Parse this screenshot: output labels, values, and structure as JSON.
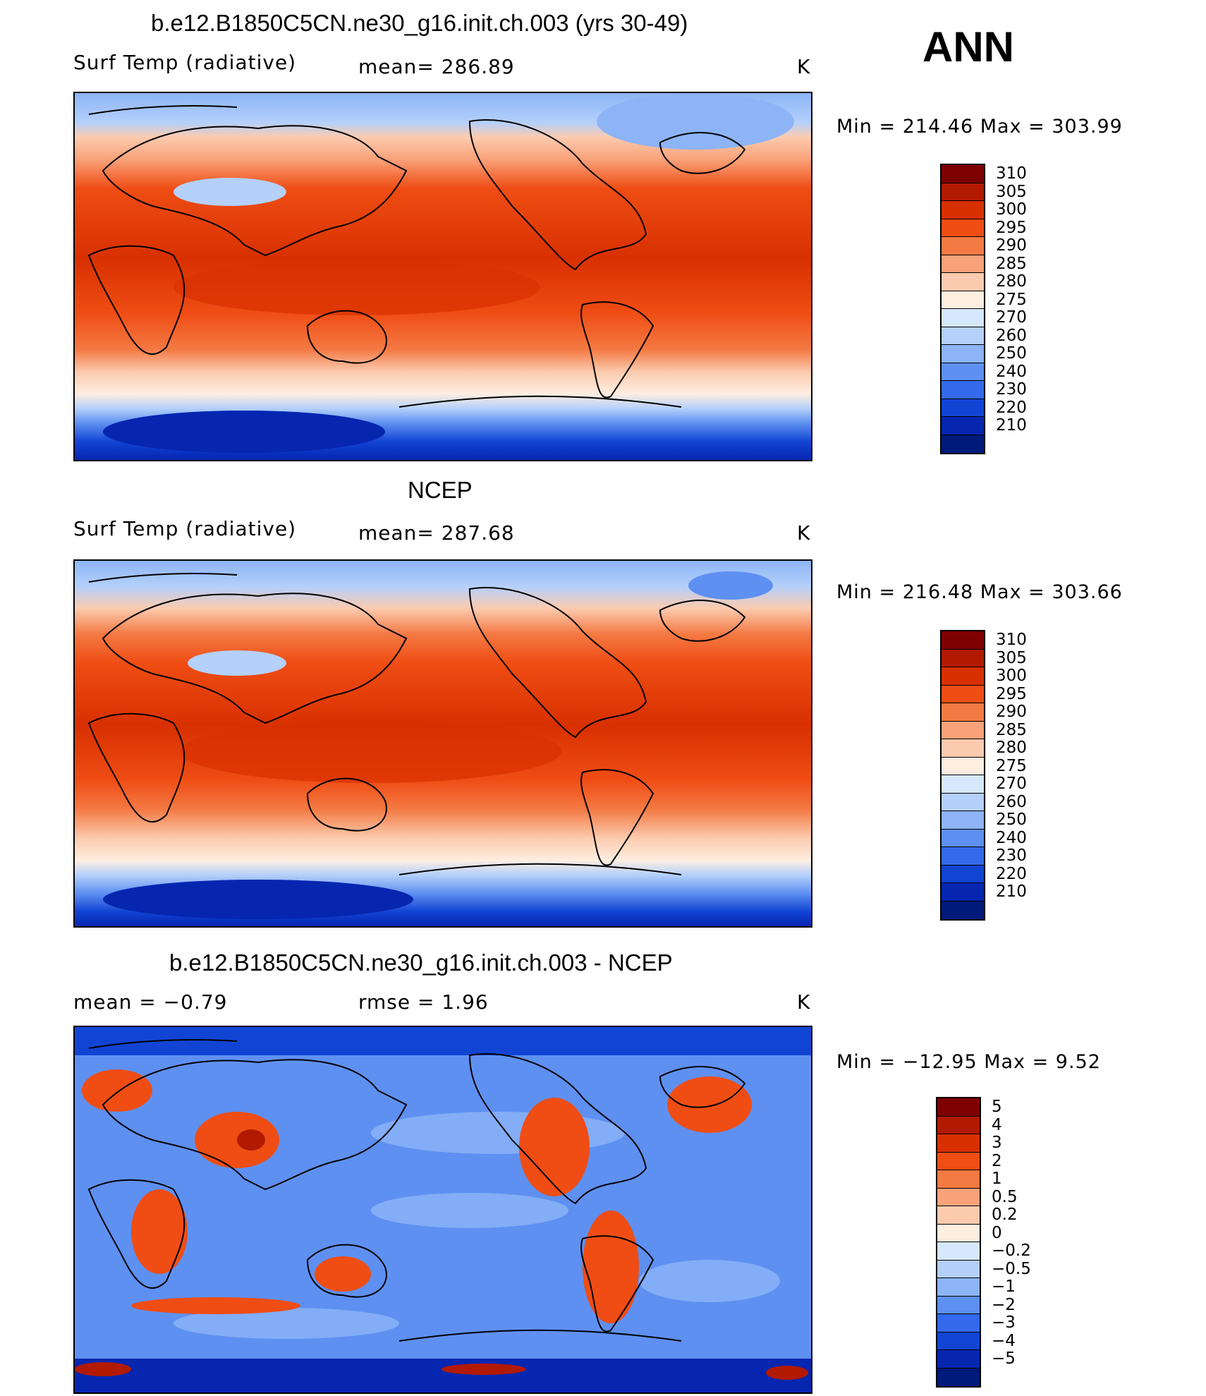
{
  "season": "ANN",
  "panels": [
    {
      "title": "b.e12.B1850C5CN.ne30_g16.init.ch.003 (yrs 30-49)",
      "left": "Surf Temp (radiative)",
      "middle": "mean= 286.89",
      "units": "K",
      "minmax": "Min = 214.46 Max = 303.99"
    },
    {
      "title": "NCEP",
      "left": "Surf Temp (radiative)",
      "middle": "mean= 287.68",
      "units": "K",
      "minmax": "Min = 216.48 Max = 303.66"
    },
    {
      "title": "b.e12.B1850C5CN.ne30_g16.init.ch.003 - NCEP",
      "left": "mean =   −0.79",
      "middle": "rmse =    1.96",
      "units": "K",
      "minmax": "Min = −12.95 Max =    9.52"
    }
  ],
  "colorbar_abs": {
    "labels": [
      "310",
      "305",
      "300",
      "295",
      "290",
      "285",
      "280",
      "275",
      "270",
      "260",
      "250",
      "240",
      "230",
      "220",
      "210"
    ],
    "colors": [
      "#7f0000",
      "#b21a00",
      "#d83000",
      "#ef4d14",
      "#f47a44",
      "#f9a27a",
      "#fccbaf",
      "#feeee0",
      "#d6e8fd",
      "#b4d0fb",
      "#8cb4f7",
      "#5e90f1",
      "#3369ea",
      "#1244d4",
      "#0626b0",
      "#001a7a"
    ]
  },
  "colorbar_diff": {
    "labels": [
      "5",
      "4",
      "3",
      "2",
      "1",
      "0.5",
      "0.2",
      "0",
      "−0.2",
      "−0.5",
      "−1",
      "−2",
      "−3",
      "−4",
      "−5"
    ],
    "colors": [
      "#7f0000",
      "#b21a00",
      "#d83000",
      "#ef4d14",
      "#f47a44",
      "#f9a27a",
      "#fccbaf",
      "#feeee0",
      "#d6e8fd",
      "#b4d0fb",
      "#8cb4f7",
      "#5e90f1",
      "#3369ea",
      "#1244d4",
      "#0626b0",
      "#001a7a"
    ]
  }
}
